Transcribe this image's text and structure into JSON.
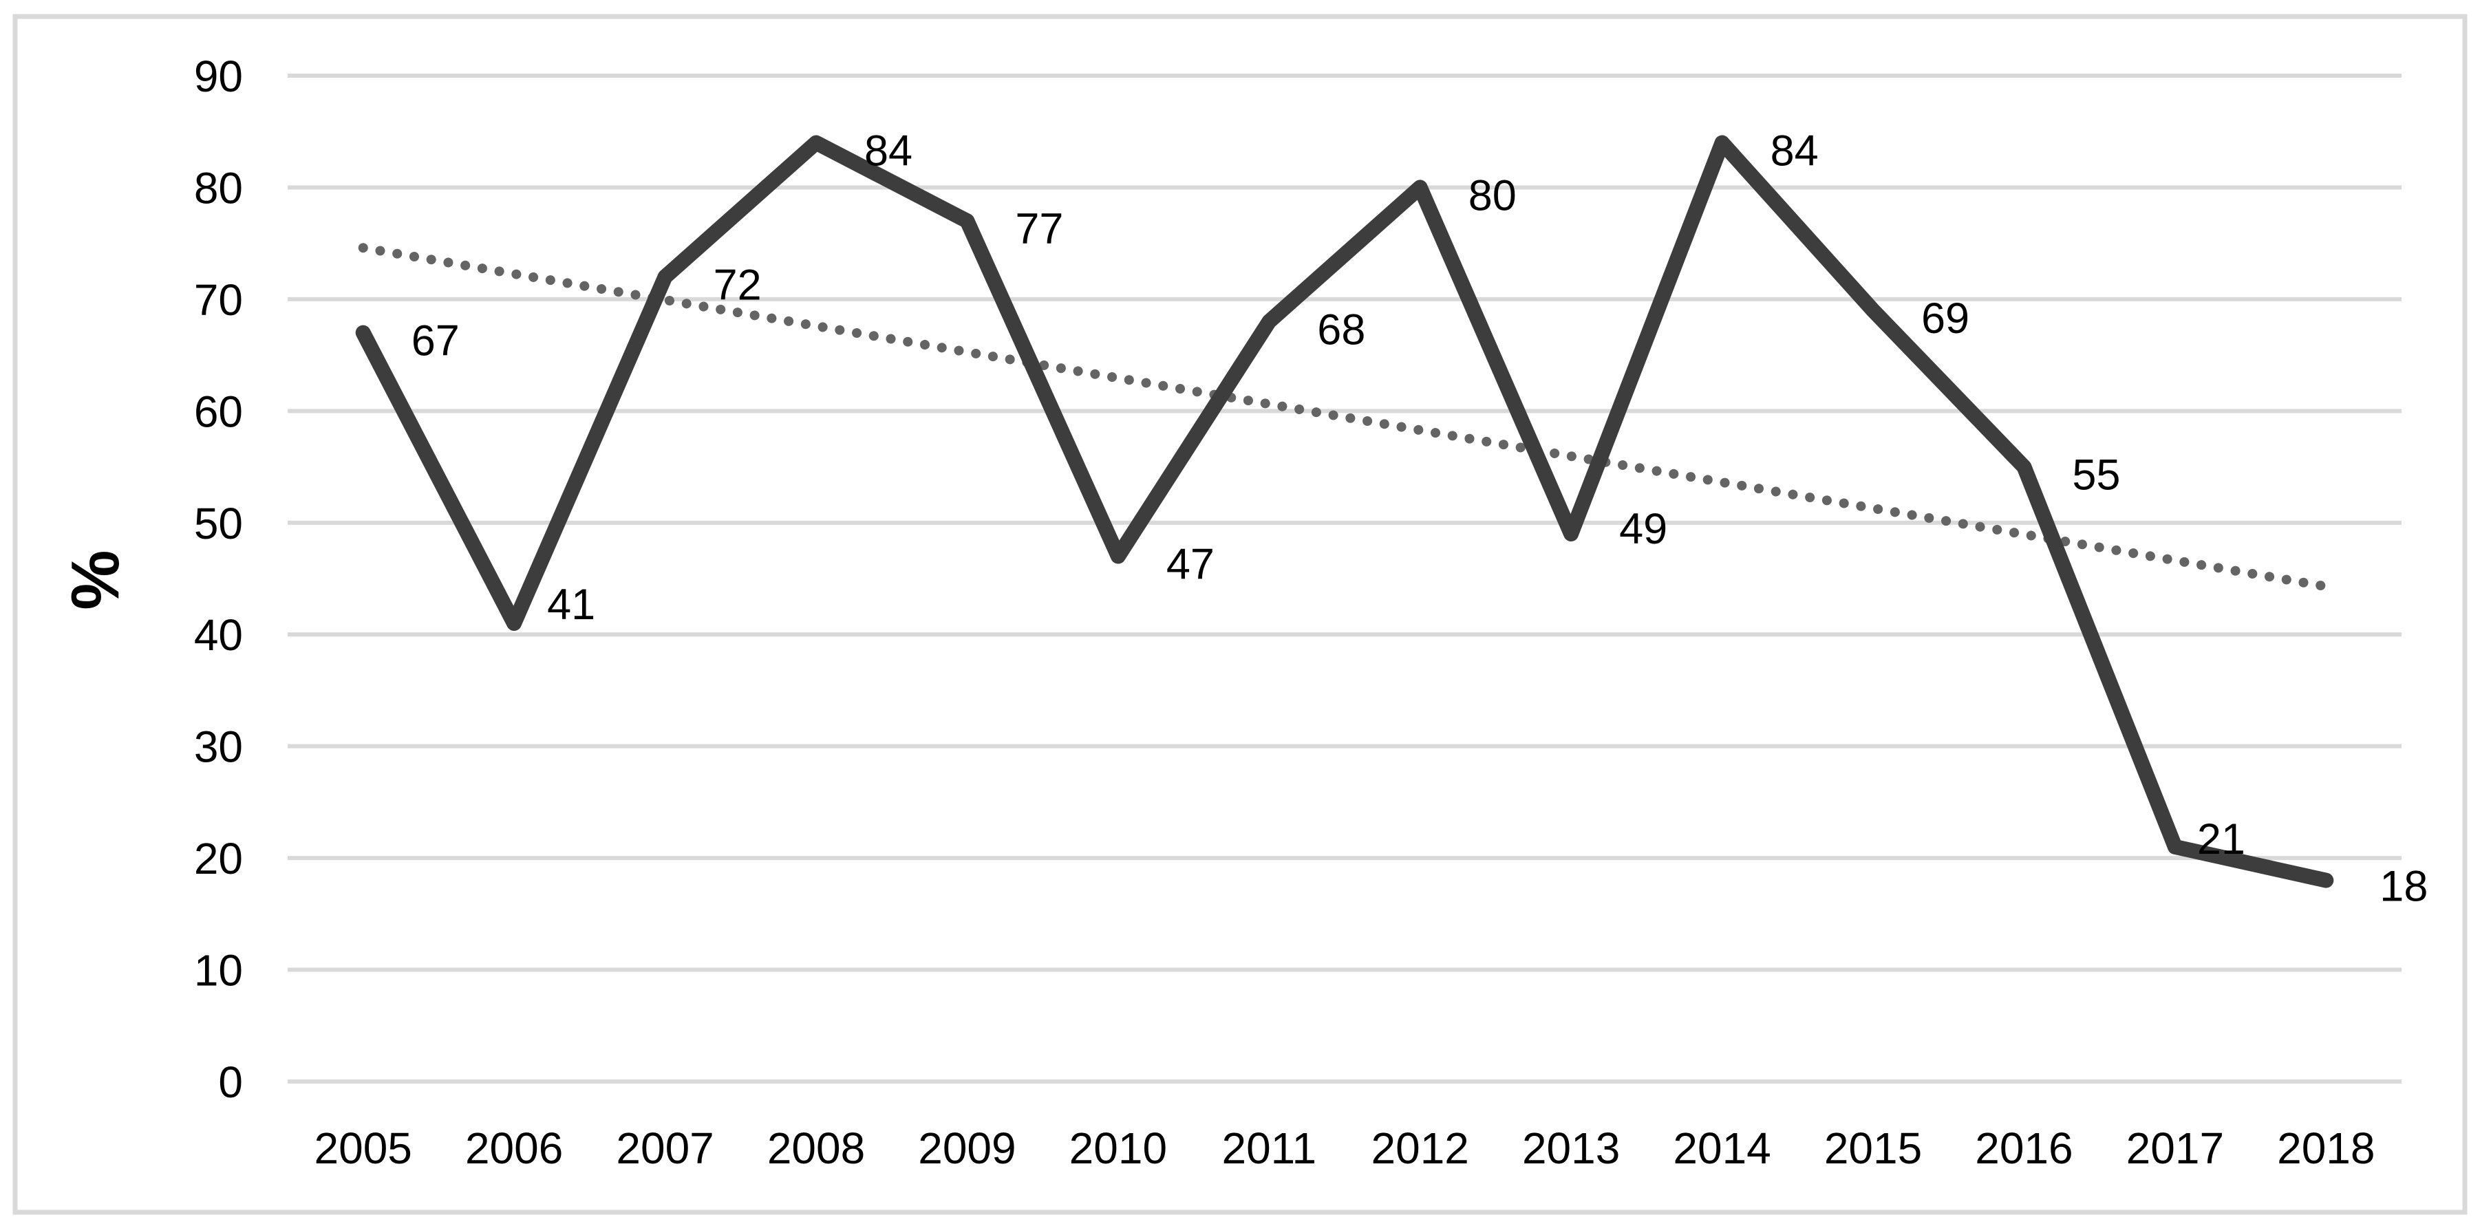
{
  "chart_data": {
    "type": "line",
    "title": "",
    "xlabel": "",
    "ylabel": "%",
    "categories": [
      "2005",
      "2006",
      "2007",
      "2008",
      "2009",
      "2010",
      "2011",
      "2012",
      "2013",
      "2014",
      "2015",
      "2016",
      "2017",
      "2018"
    ],
    "series": [
      {
        "name": "main-series",
        "values": [
          67,
          41,
          72,
          84,
          77,
          47,
          68,
          80,
          49,
          84,
          69,
          55,
          21,
          18
        ],
        "data_labels": [
          "67",
          "41",
          "72",
          "84",
          "77",
          "47",
          "68",
          "80",
          "49",
          "84",
          "69",
          "55",
          "21",
          "18"
        ]
      }
    ],
    "trendline": {
      "style": "dotted",
      "shape": "linear",
      "start_value": 74.6,
      "end_value": 44.3
    },
    "ylim": [
      0,
      90
    ],
    "ytick_step": 10,
    "ytick_labels": [
      "0",
      "10",
      "20",
      "30",
      "40",
      "50",
      "60",
      "70",
      "80",
      "90"
    ],
    "grid": true,
    "legend": "none",
    "colors": {
      "series_line": "#3d3d3d",
      "trend_line": "#646464",
      "gridline": "#d9d9d9",
      "frame_border": "#d9d9d9",
      "text": "#000000",
      "background": "#ffffff"
    }
  }
}
